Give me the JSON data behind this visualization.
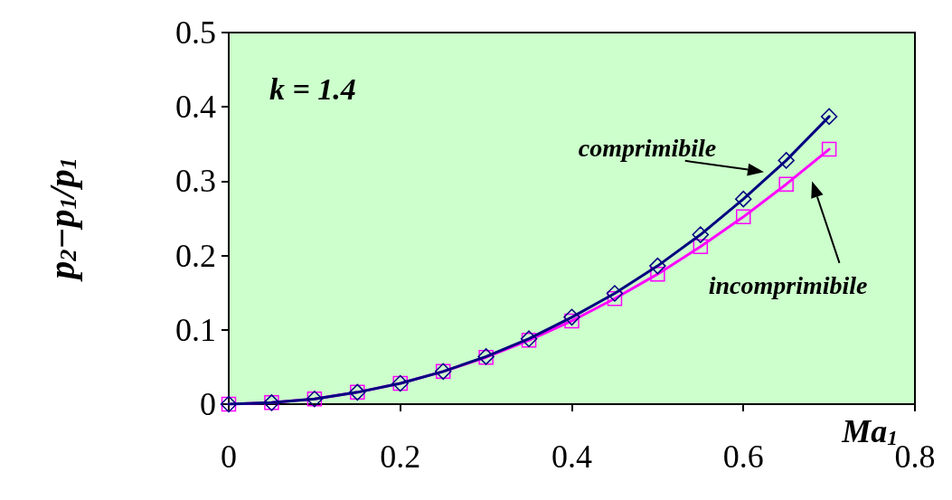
{
  "chart_data": {
    "type": "line",
    "xlabel": "Ma$_{1}$",
    "ylabel": "p$_{2}$−p$_{1}$/p$_{1}$",
    "annotations": [
      "k = 1.4"
    ],
    "x": [
      0,
      0.05,
      0.1,
      0.15,
      0.2,
      0.25,
      0.3,
      0.35,
      0.4,
      0.45,
      0.5,
      0.55,
      0.6,
      0.65,
      0.7
    ],
    "series": [
      {
        "name": "comprimibile",
        "color": "#000080",
        "marker": "diamond",
        "values": [
          0,
          0.002,
          0.007,
          0.016,
          0.028,
          0.044,
          0.064,
          0.088,
          0.117,
          0.149,
          0.186,
          0.228,
          0.276,
          0.328,
          0.387
        ]
      },
      {
        "name": "incomprimibile",
        "color": "#ff00ff",
        "marker": "square",
        "values": [
          0,
          0.002,
          0.007,
          0.016,
          0.028,
          0.044,
          0.063,
          0.086,
          0.112,
          0.142,
          0.175,
          0.212,
          0.252,
          0.296,
          0.343
        ]
      }
    ],
    "xlim": [
      0,
      0.8
    ],
    "xticks": [
      0,
      0.2,
      0.4,
      0.6,
      0.8
    ],
    "ylim": [
      0,
      0.5
    ],
    "yticks": [
      0,
      0.1,
      0.2,
      0.3,
      0.4,
      0.5
    ],
    "grid": false,
    "legend": false
  }
}
